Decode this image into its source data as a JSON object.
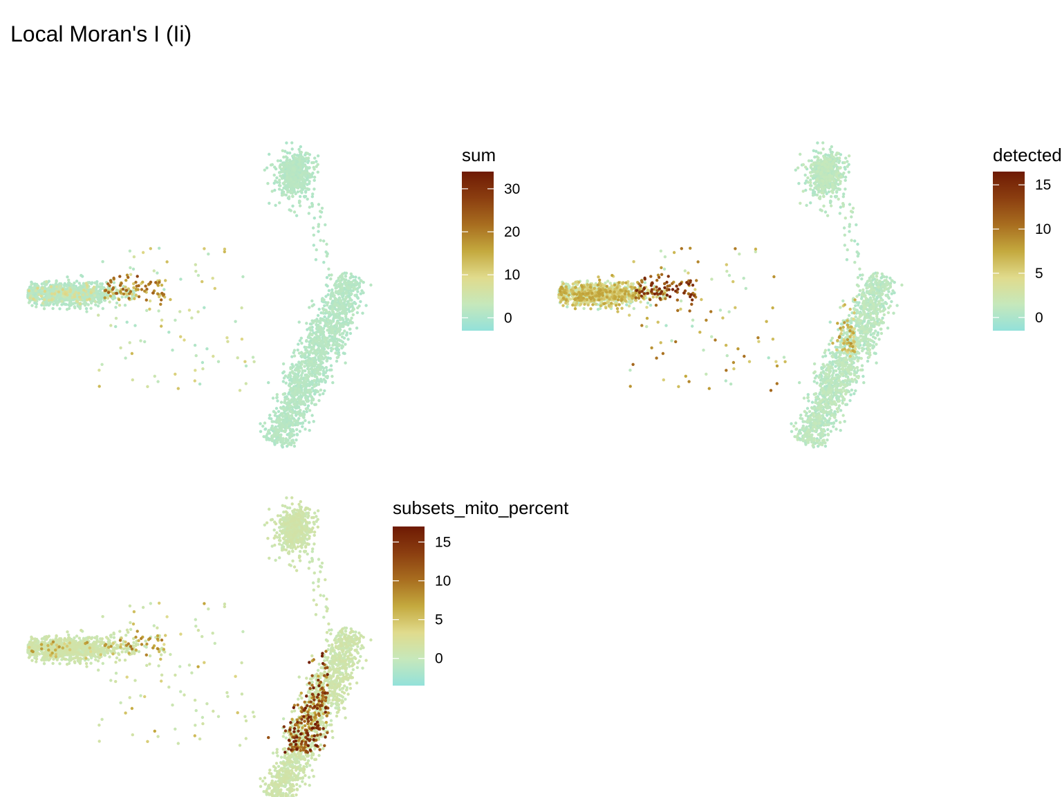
{
  "title": "Local Moran's I (Ii)",
  "colors": {
    "gradient": [
      "#93e1da",
      "#c6e8bb",
      "#e0db8d",
      "#c4a93e",
      "#a86d1f",
      "#8b3e10",
      "#6e1a04"
    ],
    "background": "#ffffff"
  },
  "chart_data": [
    {
      "type": "scatter",
      "panel": "sum",
      "legend_title": "sum",
      "color_range": [
        -3,
        34
      ],
      "legend_ticks": [
        0,
        10,
        20,
        30
      ],
      "legend_placement": "right",
      "grid": false,
      "axes": false
    },
    {
      "type": "scatter",
      "panel": "detected",
      "legend_title": "detected",
      "color_range": [
        -1.5,
        16.5
      ],
      "legend_ticks": [
        0,
        5,
        10,
        15
      ],
      "legend_placement": "right",
      "grid": false,
      "axes": false
    },
    {
      "type": "scatter",
      "panel": "subsets_mito_percent",
      "legend_title": "subsets_mito_percent",
      "color_range": [
        -3.5,
        17
      ],
      "legend_ticks": [
        0,
        5,
        10,
        15
      ],
      "legend_placement": "right",
      "grid": false,
      "axes": false
    }
  ]
}
